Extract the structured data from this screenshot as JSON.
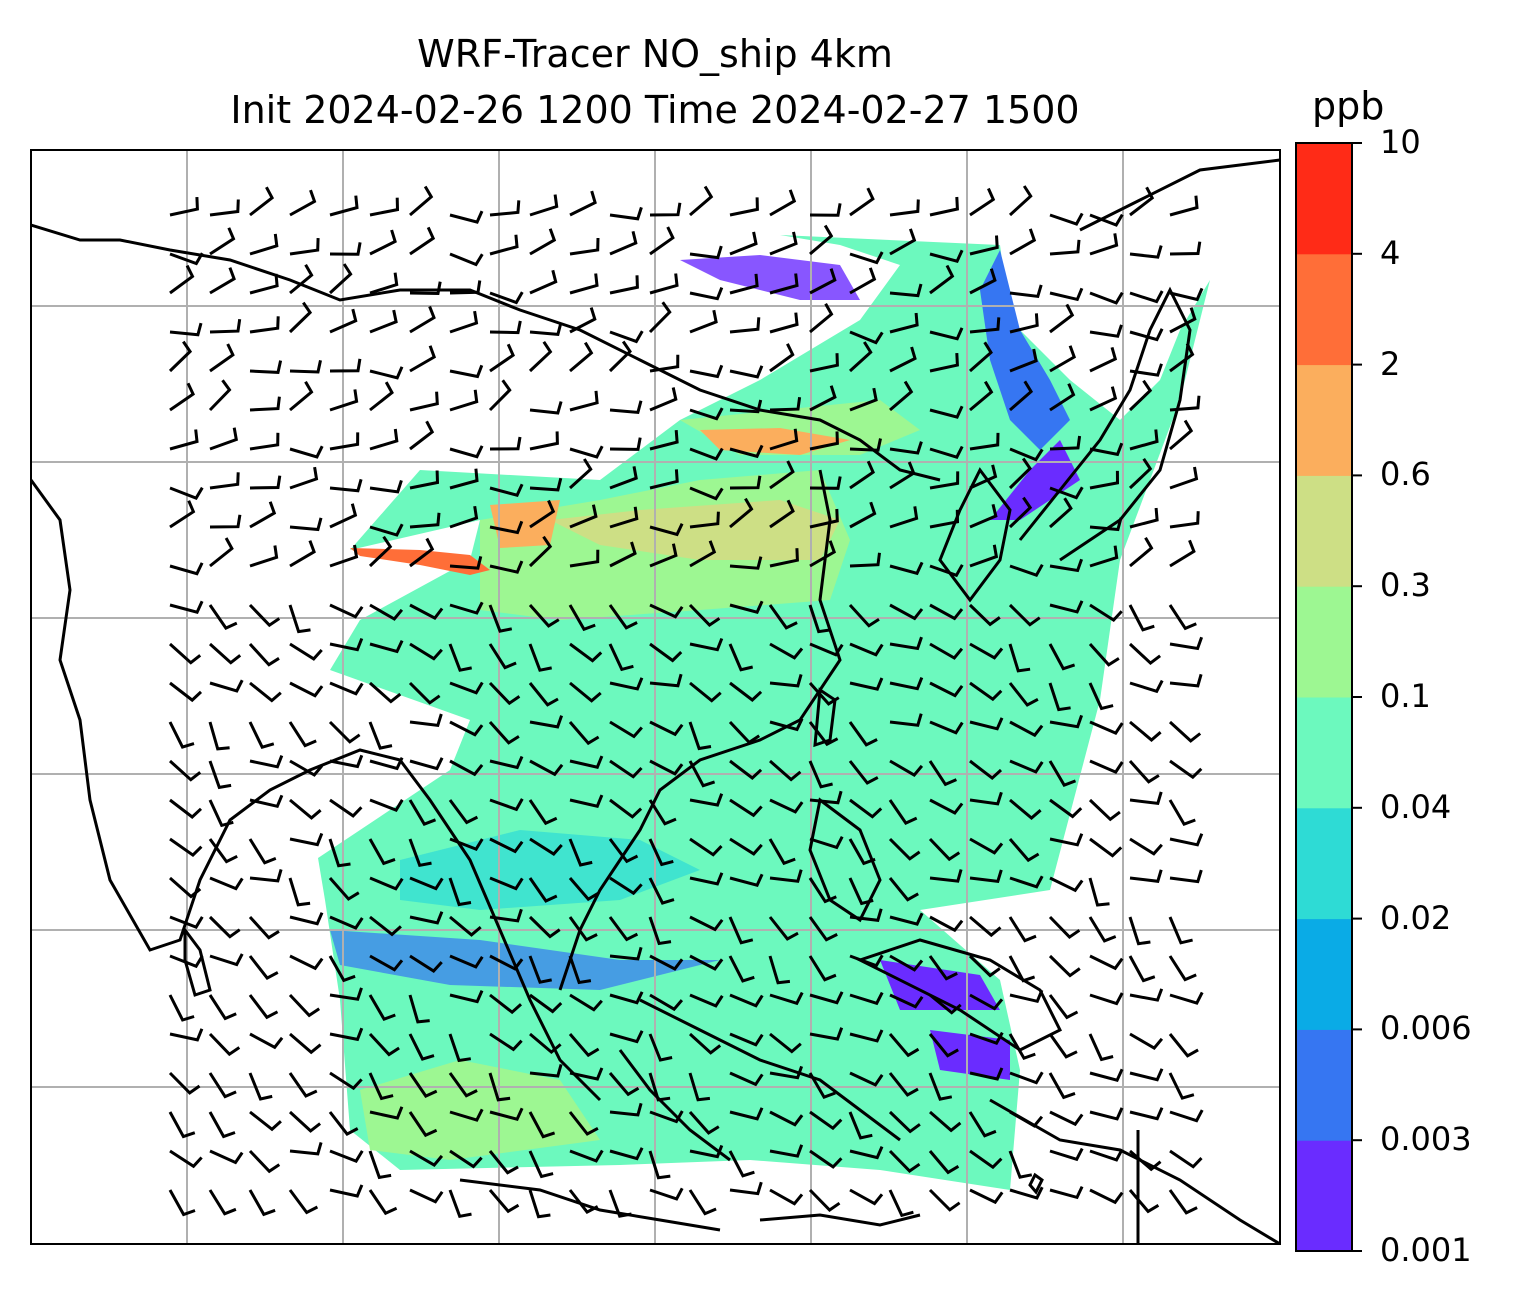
{
  "title_line1": "WRF-Tracer NO_ship 4km",
  "title_line2": "Init 2024-02-26 1200 Time 2024-02-27 1500",
  "colorbar": {
    "unit": "ppb",
    "ticks": [
      "0.001",
      "0.003",
      "0.006",
      "0.02",
      "0.04",
      "0.1",
      "0.3",
      "0.6",
      "2",
      "4",
      "10"
    ],
    "colors": [
      "#6a2cff",
      "#3676f2",
      "#0aabe6",
      "#2edbd5",
      "#6cf9be",
      "#9df792",
      "#cddf85",
      "#fbae5d",
      "#ff6e38",
      "#ff2b17"
    ]
  }
}
